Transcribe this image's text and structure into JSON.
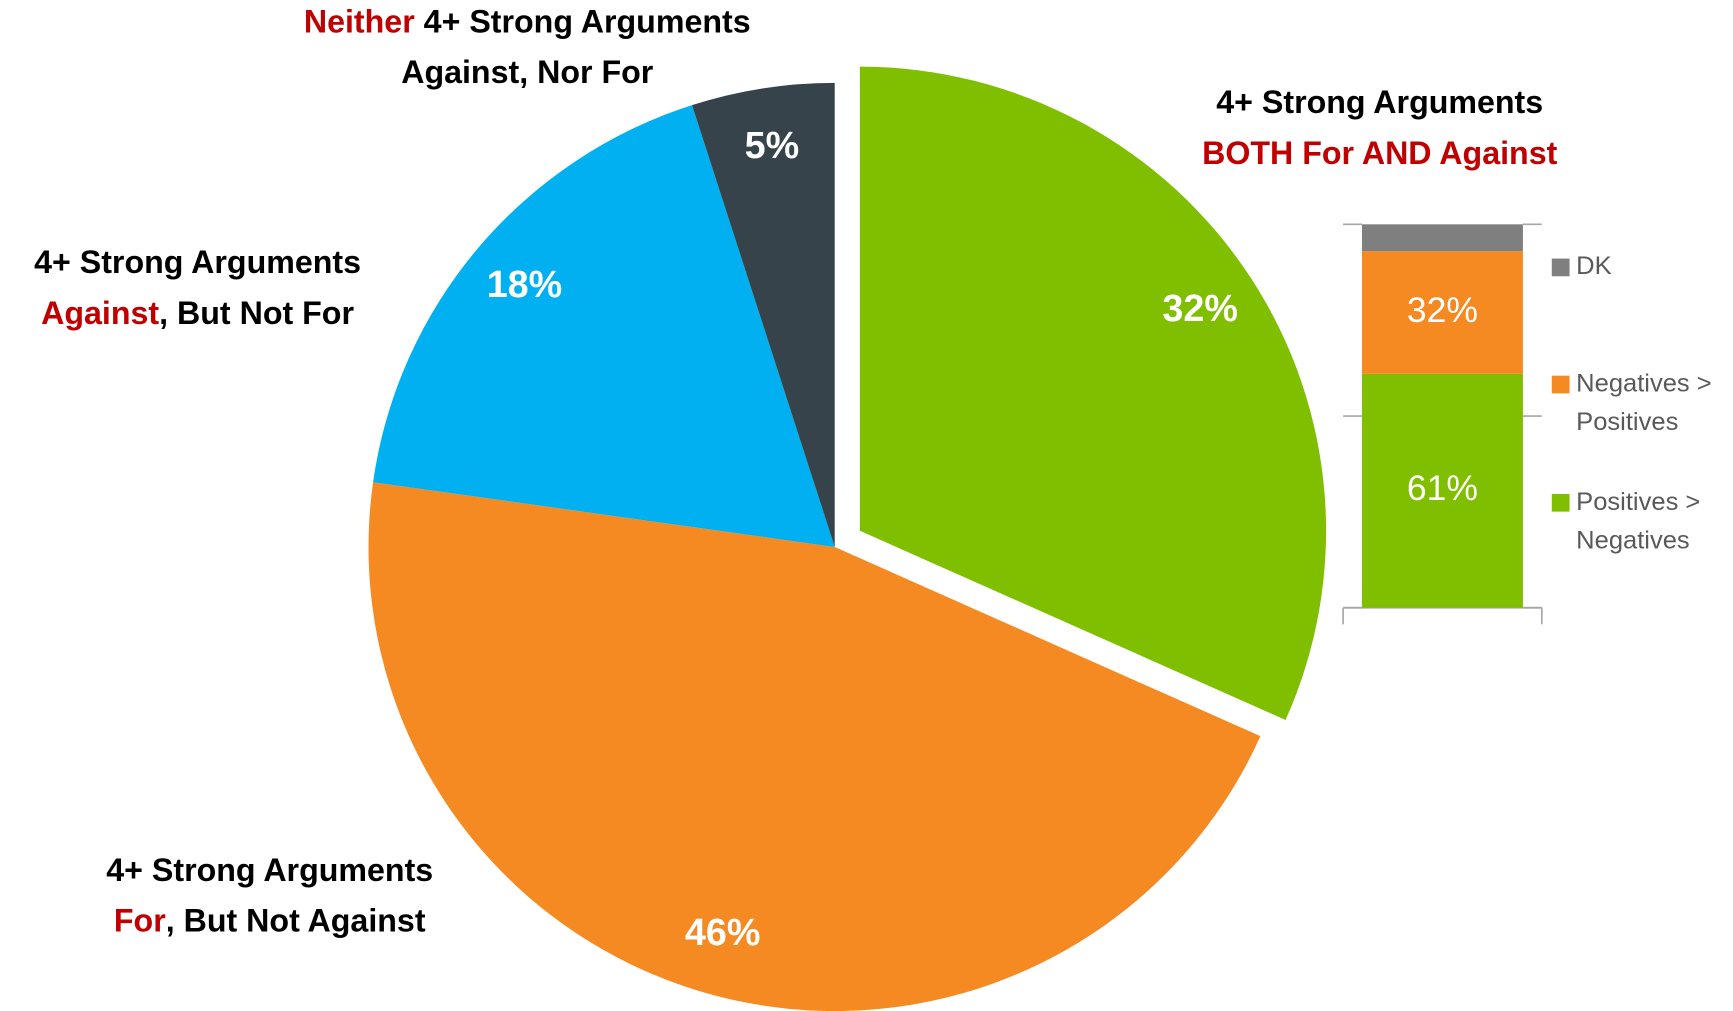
{
  "chart_data": [
    {
      "type": "pie",
      "categories": [
        [
          [
            {
              "text": "4+ Strong Arguments"
            }
          ],
          [
            {
              "text": "BOTH For AND Against",
              "color": "#c00000"
            }
          ]
        ],
        [
          [
            {
              "text": "4+ Strong Arguments"
            }
          ],
          [
            {
              "text": "For",
              "color": "#c00000"
            },
            {
              "text": ", But Not Against"
            }
          ]
        ],
        [
          [
            {
              "text": "4+ Strong Arguments"
            }
          ],
          [
            {
              "text": "Against",
              "color": "#c00000"
            },
            {
              "text": ", But Not For"
            }
          ]
        ],
        [
          [
            {
              "text": "Neither",
              "color": "#c00000"
            },
            {
              "text": " 4+ Strong Arguments"
            }
          ],
          [
            {
              "text": "Against, Nor For"
            }
          ]
        ]
      ],
      "values": [
        32,
        46,
        18,
        5
      ],
      "value_labels": [
        "32%",
        "46%",
        "18%",
        "5%"
      ],
      "colors": [
        "#7fbf00",
        "#f58a23",
        "#00b0f0",
        "#36434b"
      ],
      "exploded": [
        true,
        false,
        false,
        false
      ]
    },
    {
      "type": "bar",
      "stacked": true,
      "categories": [
        null
      ],
      "series": [
        {
          "name": "Positives > Negatives",
          "color": "#7fbf00",
          "values": [
            61
          ],
          "value_labels": [
            "61%"
          ]
        },
        {
          "name": "Negatives > Positives",
          "color": "#f58a23",
          "values": [
            32
          ],
          "value_labels": [
            "32%"
          ]
        },
        {
          "name": "DK",
          "color": "#7f7f7f",
          "values": [
            7
          ]
        }
      ],
      "ylim": [
        0,
        100
      ],
      "yticks": [
        0,
        50,
        100
      ]
    }
  ]
}
